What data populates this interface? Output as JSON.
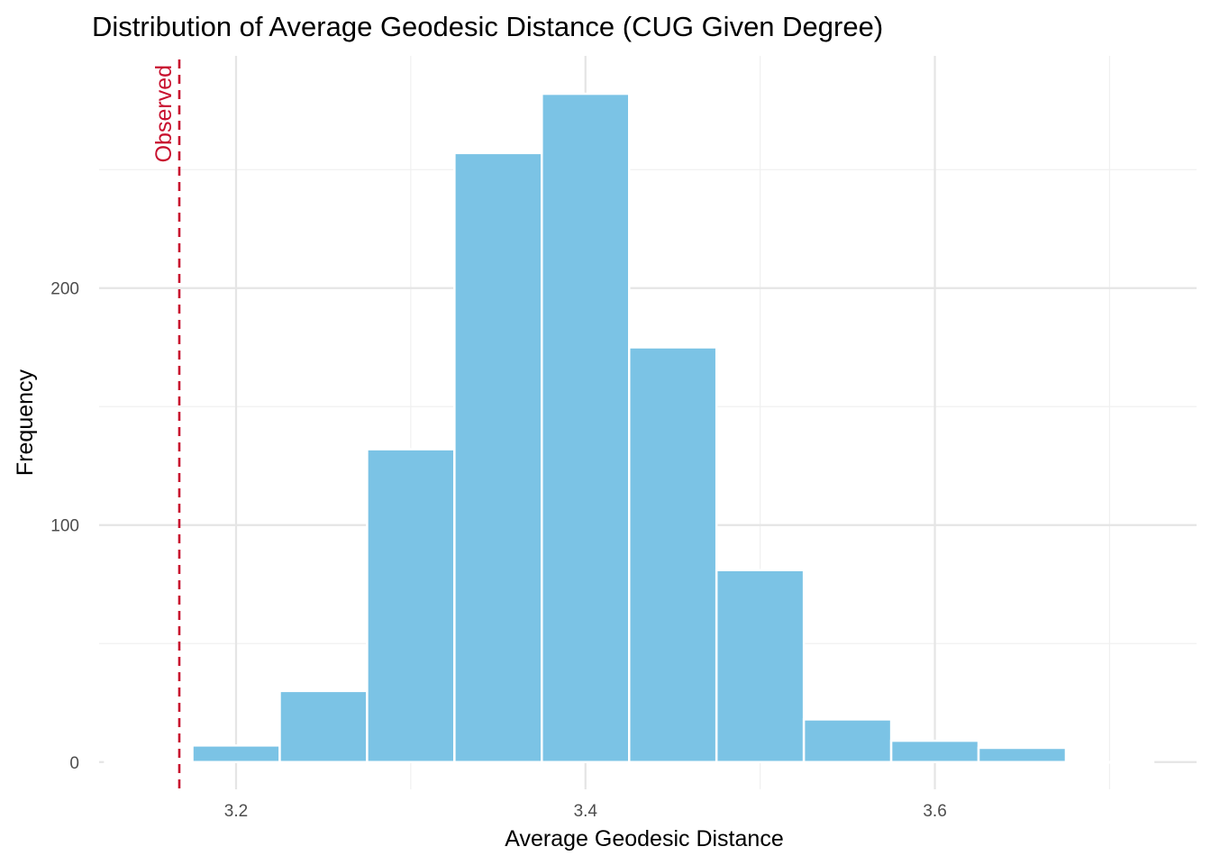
{
  "chart_data": {
    "type": "bar",
    "title": "Distribution of Average Geodesic Distance (CUG Given Degree)",
    "xlabel": "Average Geodesic Distance",
    "ylabel": "Frequency",
    "xlim": [
      3.1216,
      3.7498
    ],
    "ylim": [
      -11.5,
      298
    ],
    "x_ticks": [
      {
        "value": 3.2,
        "label": "3.2"
      },
      {
        "value": 3.4,
        "label": "3.4"
      },
      {
        "value": 3.6,
        "label": "3.6"
      }
    ],
    "x_minor_ticks": [
      3.1,
      3.3,
      3.5,
      3.7
    ],
    "y_ticks": [
      {
        "value": 0,
        "label": "0"
      },
      {
        "value": 100,
        "label": "100"
      },
      {
        "value": 200,
        "label": "200"
      }
    ],
    "y_minor_ticks": [
      50,
      150,
      250
    ],
    "bins": [
      {
        "x0": 3.125,
        "x1": 3.175,
        "count": 0
      },
      {
        "x0": 3.175,
        "x1": 3.225,
        "count": 7
      },
      {
        "x0": 3.225,
        "x1": 3.275,
        "count": 30
      },
      {
        "x0": 3.275,
        "x1": 3.325,
        "count": 132
      },
      {
        "x0": 3.325,
        "x1": 3.375,
        "count": 257
      },
      {
        "x0": 3.375,
        "x1": 3.425,
        "count": 282
      },
      {
        "x0": 3.425,
        "x1": 3.475,
        "count": 175
      },
      {
        "x0": 3.475,
        "x1": 3.525,
        "count": 81
      },
      {
        "x0": 3.525,
        "x1": 3.575,
        "count": 18
      },
      {
        "x0": 3.575,
        "x1": 3.625,
        "count": 9
      },
      {
        "x0": 3.625,
        "x1": 3.675,
        "count": 6
      },
      {
        "x0": 3.675,
        "x1": 3.725,
        "count": 0
      }
    ],
    "observed": {
      "value": 3.1675,
      "label": "Observed",
      "color": "#c8102e",
      "style": "dashed"
    },
    "bar_color": "#7bc3e5",
    "bar_border_color": "#ffffff",
    "grid": true,
    "legend": "none"
  }
}
